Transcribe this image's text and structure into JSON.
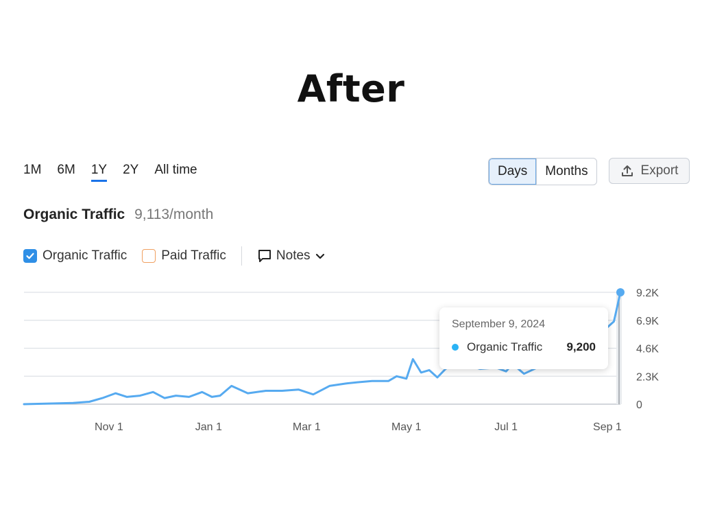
{
  "heading": "After",
  "ranges": [
    "1M",
    "6M",
    "1Y",
    "2Y",
    "All time"
  ],
  "active_range": "1Y",
  "granularity": [
    "Days",
    "Months"
  ],
  "active_granularity": "Days",
  "export_label": "Export",
  "metric": {
    "title": "Organic Traffic",
    "value": "9,113/month"
  },
  "legend": {
    "organic": "Organic Traffic",
    "paid": "Paid Traffic",
    "notes": "Notes"
  },
  "tooltip": {
    "date": "September 9, 2024",
    "series": "Organic Traffic",
    "value": "9,200"
  },
  "colors": {
    "line": "#56aaf0",
    "accent": "#1a73e8",
    "paid": "#f0a060",
    "tooltip_dot": "#2bb3f5"
  },
  "chart_data": {
    "type": "line",
    "x_ticks": [
      "Nov 1",
      "Jan 1",
      "Mar 1",
      "May 1",
      "Jul 1",
      "Sep 1"
    ],
    "y_ticks": [
      "0",
      "2.3K",
      "4.6K",
      "6.9K",
      "9.2K"
    ],
    "ylim": [
      0,
      9200
    ],
    "grid": true,
    "series": [
      {
        "name": "Organic Traffic",
        "x": [
          "2023-09-10",
          "2023-09-25",
          "2023-10-10",
          "2023-10-20",
          "2023-10-28",
          "2023-11-05",
          "2023-11-12",
          "2023-11-20",
          "2023-11-28",
          "2023-12-05",
          "2023-12-12",
          "2023-12-20",
          "2023-12-28",
          "2024-01-03",
          "2024-01-08",
          "2024-01-15",
          "2024-01-25",
          "2024-02-05",
          "2024-02-15",
          "2024-02-25",
          "2024-03-05",
          "2024-03-15",
          "2024-03-25",
          "2024-04-01",
          "2024-04-10",
          "2024-04-20",
          "2024-04-25",
          "2024-05-01",
          "2024-05-05",
          "2024-05-10",
          "2024-05-15",
          "2024-05-20",
          "2024-05-25",
          "2024-06-01",
          "2024-06-08",
          "2024-06-15",
          "2024-06-25",
          "2024-07-01",
          "2024-07-05",
          "2024-07-12",
          "2024-07-20",
          "2024-08-31",
          "2024-09-05",
          "2024-09-09"
        ],
        "values": [
          0,
          50,
          100,
          200,
          500,
          900,
          600,
          700,
          1000,
          500,
          700,
          600,
          1000,
          600,
          700,
          1500,
          900,
          1100,
          1100,
          1200,
          800,
          1500,
          1700,
          1800,
          1900,
          1900,
          2300,
          2100,
          3700,
          2600,
          2800,
          2200,
          2900,
          3400,
          3200,
          2900,
          3000,
          2700,
          3300,
          2500,
          3000,
          6200,
          6800,
          9200
        ]
      }
    ]
  }
}
